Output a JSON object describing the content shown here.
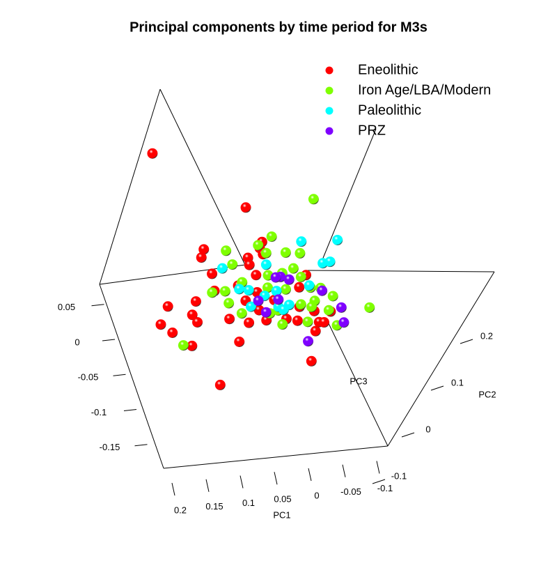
{
  "chart_data": {
    "type": "scatter3d",
    "title": "Principal components by time period for M3s",
    "xlabel": "PC1",
    "ylabel": "PC2",
    "zlabel": "PC3",
    "xticks": [
      -0.1,
      -0.05,
      0,
      0.05,
      0.1,
      0.15,
      0.2
    ],
    "yticks": [
      -0.1,
      0,
      0.1,
      0.2
    ],
    "zticks": [
      -0.15,
      -0.1,
      -0.05,
      0,
      0.05
    ],
    "series": [
      {
        "name": "Eneolithic",
        "color": "#ff0000",
        "x": [
          0.133,
          0.024,
          0.102,
          0.109,
          0.016,
          0.022,
          0.02,
          0.043,
          0.101,
          0.105,
          0.178,
          0.136,
          0.147,
          0.143,
          0.196,
          0.183,
          0.161,
          0.092,
          0.138,
          -0.002,
          0.096,
          0.07,
          0.044,
          0.05,
          0.045,
          0.065,
          0.069,
          0.044,
          0.024,
          -0.017,
          -0.009,
          0.015,
          0.0,
          -0.021,
          -0.03,
          -0.037,
          -0.028,
          -0.032,
          -0.051,
          0.039
        ],
        "z": [
          0.212,
          0.124,
          0.072,
          0.061,
          0.074,
          0.066,
          0.057,
          0.054,
          0.037,
          0.013,
          -0.002,
          0.001,
          -0.017,
          -0.028,
          -0.026,
          -0.039,
          -0.06,
          -0.061,
          -0.118,
          -0.098,
          -0.028,
          -0.036,
          -0.035,
          -0.02,
          0.005,
          -0.005,
          0.017,
          0.044,
          -0.008,
          0.006,
          -0.021,
          -0.036,
          -0.04,
          -0.057,
          -0.045,
          -0.046,
          -0.029,
          0.022,
          -0.032,
          0.029
        ]
      },
      {
        "name": "Iron Age/LBA/Modern",
        "color": "#7fff00",
        "x": [
          -0.076,
          0.0,
          0.023,
          0.015,
          -0.013,
          -0.033,
          0.071,
          0.068,
          0.109,
          0.09,
          0.09,
          0.062,
          0.022,
          0.001,
          -0.017,
          -0.024,
          0.028,
          0.003,
          -0.033,
          -0.047,
          -0.061,
          -0.033,
          -0.012,
          -0.026,
          -0.049,
          -0.108,
          -0.054,
          -0.014,
          0.023,
          0.036,
          0.173,
          0.076,
          0.023
        ],
        "z": [
          0.126,
          0.08,
          0.07,
          0.058,
          0.056,
          0.053,
          0.067,
          0.047,
          0.011,
          0.011,
          -0.006,
          0.021,
          0.027,
          0.028,
          0.033,
          0.02,
          0.01,
          0.005,
          0.004,
          0.002,
          -0.011,
          -0.015,
          -0.018,
          -0.023,
          -0.03,
          -0.032,
          -0.052,
          -0.043,
          -0.043,
          -0.026,
          -0.058,
          -0.022,
          -0.023
        ]
      },
      {
        "name": "Paleolithic",
        "color": "#00ffff",
        "x": [
          -0.04,
          -0.092,
          -0.061,
          -0.072,
          0.084,
          0.069,
          0.056,
          0.02,
          0.017,
          0.005,
          -0.032,
          0.021,
          0.015,
          0.06,
          0.036
        ],
        "z": [
          0.069,
          0.066,
          0.036,
          0.037,
          0.043,
          0.012,
          0.009,
          0.042,
          0.004,
          -0.017,
          0.007,
          -0.018,
          -0.023,
          -0.014,
          -0.001
        ]
      },
      {
        "name": "PRZ",
        "color": "#7f00ff",
        "x": [
          0.005,
          -0.006,
          0.012,
          -0.048,
          -0.068,
          -0.065,
          -0.006,
          0.041,
          0.018,
          0.047
        ],
        "z": [
          0.023,
          0.018,
          0.023,
          -0.002,
          -0.028,
          -0.049,
          -0.07,
          -0.024,
          -0.008,
          -0.007
        ]
      }
    ]
  }
}
